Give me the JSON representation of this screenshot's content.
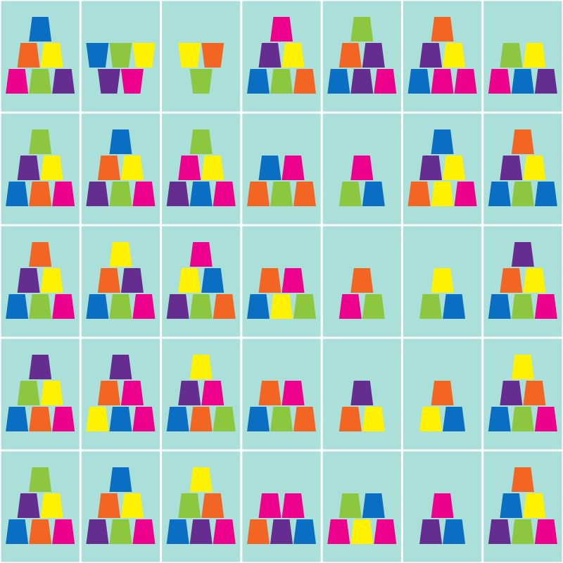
{
  "palette": {
    "B": "#0a6fc2",
    "O": "#f26522",
    "Y": "#fff200",
    "G": "#8dc63f",
    "P": "#ec008c",
    "V": "#662d91"
  },
  "background": "#aae0d9",
  "columns": 7,
  "cards": [
    {
      "rows": [
        [
          "B"
        ],
        [
          "O",
          "Y"
        ],
        [
          "P",
          "G",
          "V"
        ]
      ]
    },
    {
      "inverted": true,
      "rows": [
        [
          "B",
          "G",
          "Y"
        ],
        [
          "V",
          "P"
        ]
      ]
    },
    {
      "inverted": true,
      "rows": [
        [
          "Y",
          "O"
        ],
        [
          "G"
        ]
      ]
    },
    {
      "rows": [
        [
          "P"
        ],
        [
          "V",
          "Y"
        ],
        [
          "B",
          "G",
          "O"
        ]
      ]
    },
    {
      "rows": [
        [
          "G"
        ],
        [
          "O",
          "V"
        ],
        [
          "B",
          "V",
          "P"
        ]
      ]
    },
    {
      "rows": [
        [
          "O"
        ],
        [
          "V",
          "Y"
        ],
        [
          "B",
          "P",
          "P"
        ]
      ]
    },
    {
      "rows": [
        [
          "G",
          "Y"
        ],
        [
          "P",
          "B",
          "V"
        ]
      ]
    },
    {
      "rows": [
        [
          "G"
        ],
        [
          "V",
          "Y"
        ],
        [
          "B",
          "O",
          "P"
        ]
      ]
    },
    {
      "rows": [
        [
          "B"
        ],
        [
          "O",
          "Y"
        ],
        [
          "V",
          "G",
          "P"
        ]
      ]
    },
    {
      "rows": [
        [
          "G"
        ],
        [
          "P",
          "Y"
        ],
        [
          "V",
          "B",
          "P"
        ]
      ]
    },
    {
      "rows": [
        [
          "B",
          "P"
        ],
        [
          "O",
          "G",
          "O"
        ]
      ]
    },
    {
      "rows": [
        [
          "P"
        ],
        [
          "G",
          "B"
        ]
      ]
    },
    {
      "rows": [
        [
          "B"
        ],
        [
          "V",
          "Y"
        ],
        [
          "O",
          "Y",
          "P"
        ]
      ]
    },
    {
      "rows": [
        [
          "O"
        ],
        [
          "V",
          "Y"
        ],
        [
          "B",
          "G",
          "B"
        ]
      ]
    },
    {
      "rows": [
        [
          "O"
        ],
        [
          "V",
          "Y"
        ],
        [
          "B",
          "G",
          "P"
        ]
      ]
    },
    {
      "rows": [
        [
          "Y"
        ],
        [
          "O",
          "V"
        ],
        [
          "B",
          "G",
          "P"
        ]
      ]
    },
    {
      "rows": [
        [
          "P"
        ],
        [
          "Y",
          "B"
        ],
        [
          "V",
          "G",
          "O"
        ]
      ]
    },
    {
      "rows": [
        [
          "O",
          "P"
        ],
        [
          "B",
          "Y",
          "G"
        ]
      ]
    },
    {
      "rows": [
        [
          "O"
        ],
        [
          "P",
          "G"
        ]
      ]
    },
    {
      "rows": [
        [
          "Y"
        ],
        [
          "G",
          "B"
        ]
      ]
    },
    {
      "rows": [
        [
          "V"
        ],
        [
          "O",
          "Y"
        ],
        [
          "B",
          "G",
          "P"
        ]
      ]
    },
    {
      "rows": [
        [
          "V"
        ],
        [
          "G",
          "Y"
        ],
        [
          "B",
          "O",
          "P"
        ]
      ]
    },
    {
      "rows": [
        [
          "V"
        ],
        [
          "O",
          "P"
        ],
        [
          "Y",
          "B",
          "P"
        ]
      ]
    },
    {
      "rows": [
        [
          "Y"
        ],
        [
          "V",
          "P"
        ],
        [
          "B",
          "O",
          "G"
        ]
      ]
    },
    {
      "rows": [
        [
          "O",
          "P"
        ],
        [
          "B",
          "G",
          "O"
        ]
      ]
    },
    {
      "rows": [
        [
          "V"
        ],
        [
          "O",
          "Y"
        ]
      ]
    },
    {
      "rows": [
        [
          "O"
        ],
        [
          "Y",
          "B"
        ]
      ]
    },
    {
      "rows": [
        [
          "Y"
        ],
        [
          "V",
          "O"
        ],
        [
          "B",
          "G",
          "P"
        ]
      ]
    },
    {
      "rows": [
        [
          "G"
        ],
        [
          "V",
          "Y"
        ],
        [
          "B",
          "O",
          "P"
        ]
      ]
    },
    {
      "rows": [
        [
          "B"
        ],
        [
          "O",
          "Y"
        ],
        [
          "V",
          "G",
          "P"
        ]
      ]
    },
    {
      "rows": [
        [
          "Y"
        ],
        [
          "G",
          "O"
        ],
        [
          "B",
          "V",
          "P"
        ]
      ]
    },
    {
      "rows": [
        [
          "P",
          "P"
        ],
        [
          "O",
          "V",
          "B"
        ]
      ]
    },
    {
      "rows": [
        [
          "G",
          "B"
        ],
        [
          "P",
          "Y",
          "P"
        ]
      ]
    },
    {
      "rows": [
        [
          "P"
        ],
        [
          "V",
          "B"
        ]
      ]
    },
    {
      "rows": [
        [
          "O"
        ],
        [
          "B",
          "Y"
        ],
        [
          "V",
          "G",
          "P"
        ]
      ]
    }
  ]
}
